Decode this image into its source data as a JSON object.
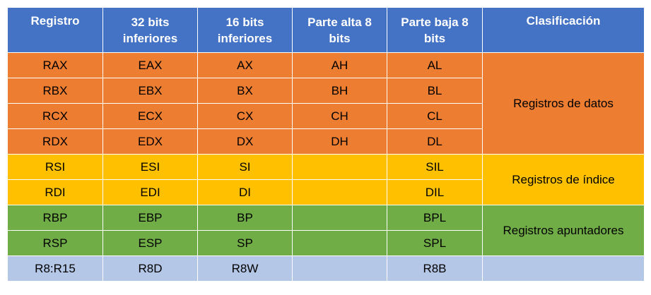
{
  "headers": {
    "registro": "Registro",
    "bits32": "32 bits inferiores",
    "bits16": "16 bits inferiores",
    "alta8": "Parte alta 8 bits",
    "baja8": "Parte baja 8 bits",
    "clasificacion": "Clasificación"
  },
  "rows": [
    {
      "registro": "RAX",
      "bits32": "EAX",
      "bits16": "AX",
      "alta8": "AH",
      "baja8": "AL"
    },
    {
      "registro": "RBX",
      "bits32": "EBX",
      "bits16": "BX",
      "alta8": "BH",
      "baja8": "BL"
    },
    {
      "registro": "RCX",
      "bits32": "ECX",
      "bits16": "CX",
      "alta8": "CH",
      "baja8": "CL"
    },
    {
      "registro": "RDX",
      "bits32": "EDX",
      "bits16": "DX",
      "alta8": "DH",
      "baja8": "DL"
    },
    {
      "registro": "RSI",
      "bits32": "ESI",
      "bits16": "SI",
      "alta8": "",
      "baja8": "SIL"
    },
    {
      "registro": "RDI",
      "bits32": "EDI",
      "bits16": "DI",
      "alta8": "",
      "baja8": "DIL"
    },
    {
      "registro": "RBP",
      "bits32": "EBP",
      "bits16": "BP",
      "alta8": "",
      "baja8": "BPL"
    },
    {
      "registro": "RSP",
      "bits32": "ESP",
      "bits16": "SP",
      "alta8": "",
      "baja8": "SPL"
    },
    {
      "registro": "R8:R15",
      "bits32": "R8D",
      "bits16": "R8W",
      "alta8": "",
      "baja8": "R8B"
    }
  ],
  "groups": {
    "datos": "Registros de datos",
    "indice": "Registros de índice",
    "apuntadores": "Registros apuntadores",
    "otros": ""
  },
  "colors": {
    "header": "#4472c4",
    "datos": "#ed7d31",
    "indice": "#ffc000",
    "apuntadores": "#70ad47",
    "otros": "#b4c7e7"
  }
}
